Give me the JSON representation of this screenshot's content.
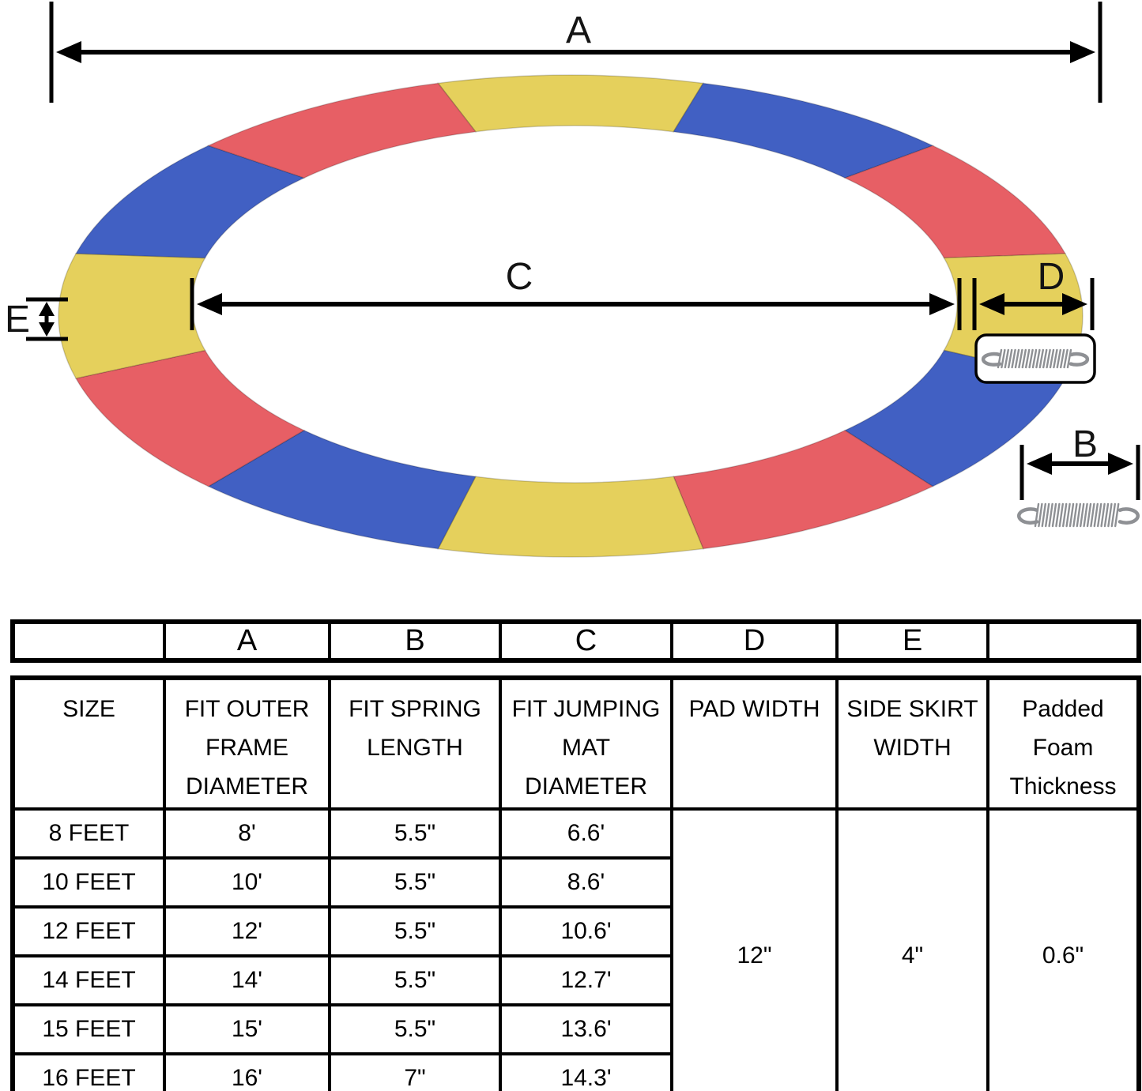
{
  "diagram": {
    "labels": {
      "a": "A",
      "b": "B",
      "c": "C",
      "d": "D",
      "e": "E"
    },
    "palette": {
      "yellow": "#e5d05c",
      "blue": "#4160c3",
      "red": "#e75f65"
    },
    "ring_segments_clockwise_from_top": [
      "yellow",
      "blue",
      "red",
      "yellow",
      "blue",
      "red",
      "yellow",
      "blue",
      "red",
      "yellow",
      "blue",
      "red"
    ],
    "icons": {
      "boxed_spring": "spring-icon",
      "loose_spring": "spring-icon"
    }
  },
  "spec_table": {
    "dim_header": [
      "",
      "A",
      "B",
      "C",
      "D",
      "E",
      ""
    ],
    "header_lines": [
      [
        "SIZE"
      ],
      [
        "FIT OUTER",
        "FRAME",
        "DIAMETER"
      ],
      [
        "FIT SPRING",
        "LENGTH"
      ],
      [
        "FIT JUMPING",
        "MAT",
        "DIAMETER"
      ],
      [
        "PAD WIDTH"
      ],
      [
        "SIDE SKIRT",
        "WIDTH"
      ],
      [
        "Padded",
        "Foam",
        "Thickness"
      ]
    ],
    "rows": [
      [
        "8 FEET",
        "8'",
        "5.5\"",
        "6.6'"
      ],
      [
        "10 FEET",
        "10'",
        "5.5\"",
        "8.6'"
      ],
      [
        "12 FEET",
        "12'",
        "5.5\"",
        "10.6'"
      ],
      [
        "14 FEET",
        "14'",
        "5.5\"",
        "12.7'"
      ],
      [
        "15 FEET",
        "15'",
        "5.5\"",
        "13.6'"
      ],
      [
        "16 FEET",
        "16'",
        "7\"",
        "14.3'"
      ]
    ],
    "merged": {
      "pad_width": "12\"",
      "side_skirt_width": "4\"",
      "padded_foam_thickness": "0.6\""
    }
  }
}
